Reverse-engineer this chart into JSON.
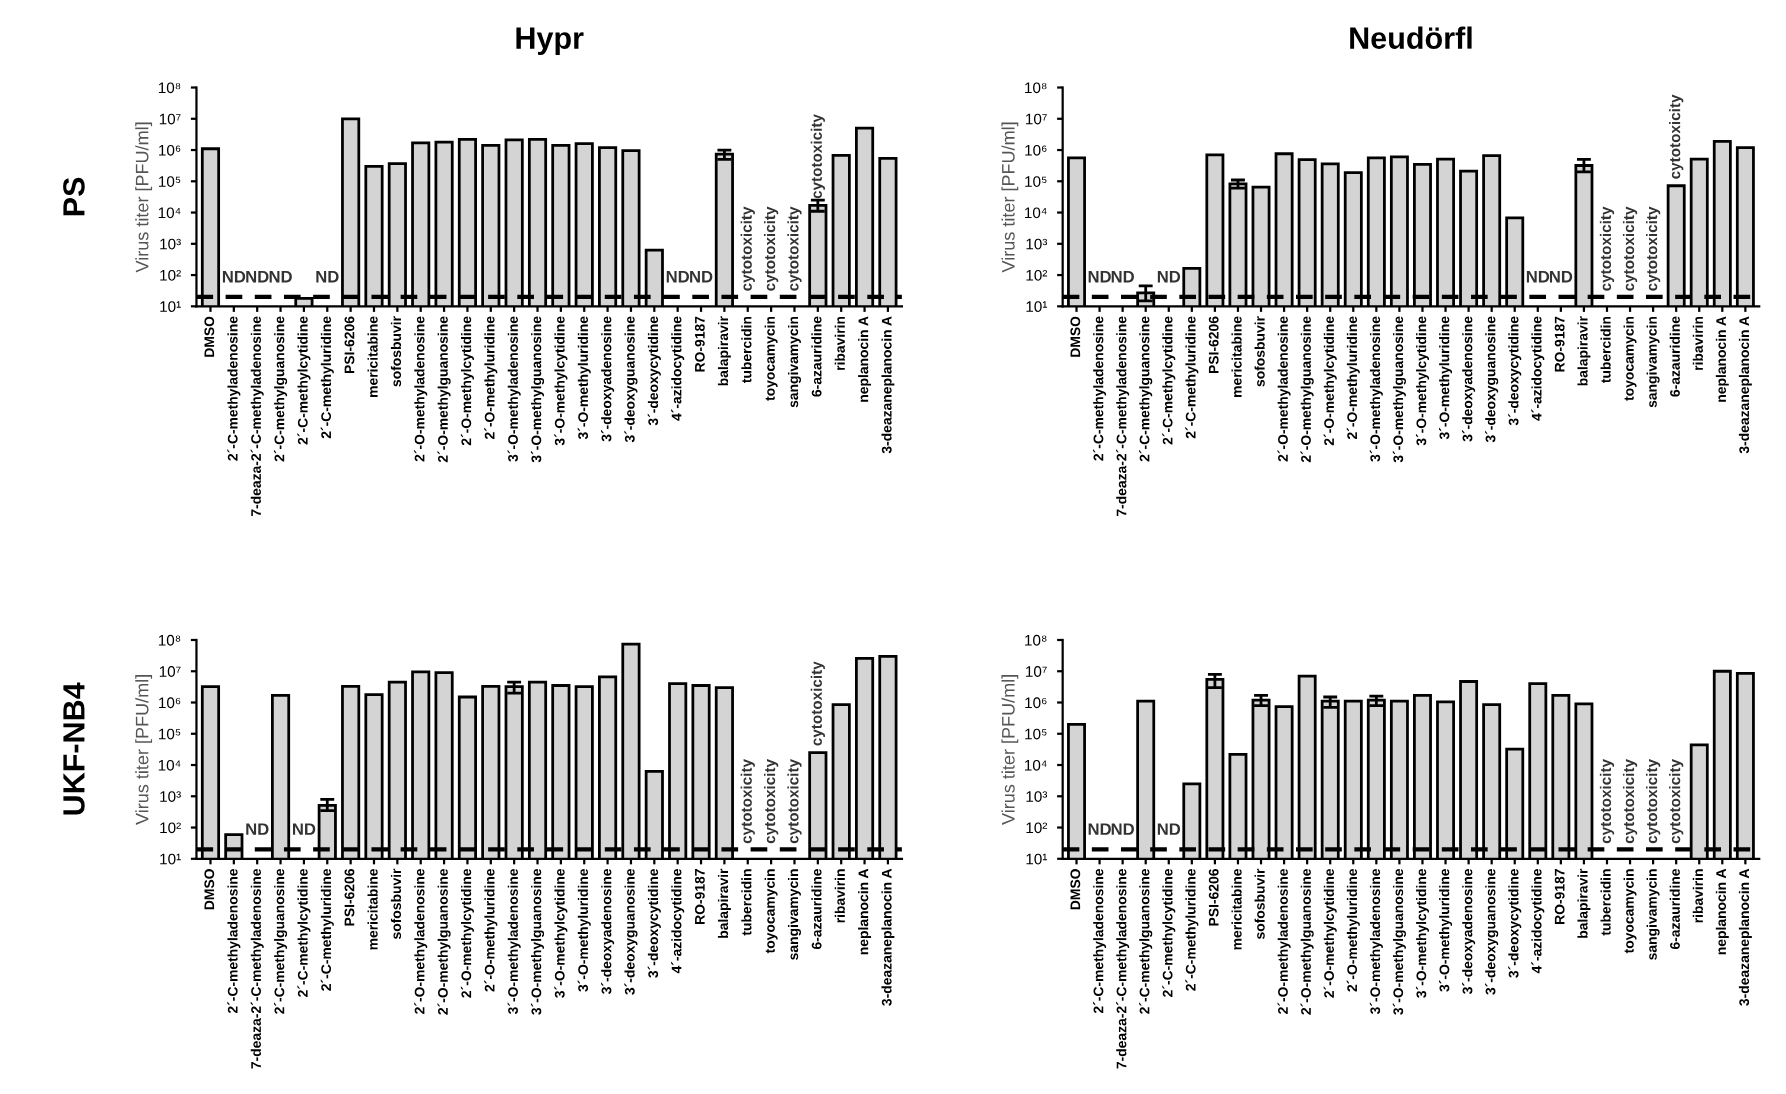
{
  "chart_data": [
    {
      "type": "bar",
      "title": "Hypr",
      "ylabel": "Virus titer [PFU/ml]",
      "color": "#d4d4d4",
      "log": true,
      "ylim": [
        10,
        100000000
      ],
      "yticks": [
        {
          "value": 10,
          "label": "10¹"
        },
        {
          "value": 100,
          "label": "10²"
        },
        {
          "value": 1000,
          "label": "10³"
        },
        {
          "value": 10000,
          "label": "10⁴"
        },
        {
          "value": 100000,
          "label": "10⁵"
        },
        {
          "value": 1000000,
          "label": "10⁶"
        },
        {
          "value": 10000000,
          "label": "10⁷"
        },
        {
          "value": 100000000,
          "label": "10⁸"
        }
      ],
      "categories": [
        "DMSO",
        "2´-C-methyladenosine",
        "7-deaza-2´-C-methyladenosine",
        "2´-C-methylguanosine",
        "2´-C-methylcytidine",
        "2´-C-methyluridine",
        "PSI-6206",
        "mericitabine",
        "sofosbuvir",
        "2´-O-methyladenosine",
        "2´-O-methylguanosine",
        "2´-O-methylcytidine",
        "2´-O-methyluridine",
        "3´-O-methyladenosine",
        "3´-O-methylguanosine",
        "3´-O-methylcytidine",
        "3´-O-methyluridine",
        "3´-deoxyadenosine",
        "3´-deoxyguanosine",
        "3´-deoxycytidine",
        "4´-azidocytidine",
        "RO-9187",
        "balapiravir",
        "tubercidin",
        "toyocamycin",
        "sangivamycin",
        "6-azauridine",
        "ribavirin",
        "neplanocin A",
        "3-deazaneplanocin A"
      ],
      "values": [
        1100000,
        null,
        null,
        null,
        18,
        null,
        10000000,
        300000,
        370000,
        1700000,
        1800000,
        2200000,
        1400000,
        2100000,
        2200000,
        1400000,
        1600000,
        1200000,
        950000,
        630,
        null,
        null,
        740000,
        null,
        null,
        null,
        17000,
        670000,
        5000000,
        540000
      ],
      "errors": [
        null,
        null,
        null,
        null,
        null,
        null,
        null,
        null,
        null,
        null,
        null,
        null,
        null,
        null,
        null,
        null,
        null,
        null,
        null,
        null,
        null,
        null,
        [
          500000,
          1000000
        ],
        null,
        null,
        null,
        [
          11000,
          25000
        ],
        null,
        null,
        null
      ],
      "ref_lines": [
        {
          "axis": "y",
          "value": 20,
          "color": "#000000",
          "line_style": "dashed"
        }
      ],
      "value_labels": [
        null,
        "ND",
        "ND",
        "ND",
        null,
        "ND",
        null,
        null,
        null,
        null,
        null,
        null,
        null,
        null,
        null,
        null,
        null,
        null,
        null,
        null,
        "ND",
        "ND",
        null,
        "cytotoxicity",
        "cytotoxicity",
        "cytotoxicity",
        "cytotoxicity",
        null,
        null,
        null
      ],
      "annotations": [
        "PS"
      ]
    },
    {
      "type": "bar",
      "title": "Neudörfl",
      "ylabel": "Virus titer [PFU/ml]",
      "color": "#d4d4d4",
      "log": true,
      "ylim": [
        10,
        100000000
      ],
      "yticks": [
        {
          "value": 10,
          "label": "10¹"
        },
        {
          "value": 100,
          "label": "10²"
        },
        {
          "value": 1000,
          "label": "10³"
        },
        {
          "value": 10000,
          "label": "10⁴"
        },
        {
          "value": 100000,
          "label": "10⁵"
        },
        {
          "value": 1000000,
          "label": "10⁶"
        },
        {
          "value": 10000000,
          "label": "10⁷"
        },
        {
          "value": 100000000,
          "label": "10⁸"
        }
      ],
      "categories": [
        "DMSO",
        "2´-C-methyladenosine",
        "7-deaza-2´-C-methyladenosine",
        "2´-C-methylguanosine",
        "2´-C-methylcytidine",
        "2´-C-methyluridine",
        "PSI-6206",
        "mericitabine",
        "sofosbuvir",
        "2´-O-methyladenosine",
        "2´-O-methylguanosine",
        "2´-O-methylcytidine",
        "2´-O-methyluridine",
        "3´-O-methyladenosine",
        "3´-O-methylguanosine",
        "3´-O-methylcytidine",
        "3´-O-methyluridine",
        "3´-deoxyadenosine",
        "3´-deoxyguanosine",
        "3´-deoxycytidine",
        "4´-azidocytidine",
        "RO-9187",
        "balapiravir",
        "tubercidin",
        "toyocamycin",
        "sangivamycin",
        "6-azauridine",
        "ribavirin",
        "neplanocin A",
        "3-deazaneplanocin A"
      ],
      "values": [
        560000,
        null,
        null,
        27,
        null,
        165,
        700000,
        83000,
        65000,
        760000,
        490000,
        360000,
        190000,
        560000,
        600000,
        350000,
        510000,
        210000,
        660000,
        6800,
        null,
        null,
        320000,
        null,
        null,
        null,
        72000,
        510000,
        1900000,
        1200000
      ],
      "errors": [
        null,
        null,
        null,
        [
          15,
          45
        ],
        null,
        null,
        null,
        [
          60000,
          110000
        ],
        null,
        null,
        null,
        null,
        null,
        null,
        null,
        null,
        null,
        null,
        null,
        null,
        null,
        null,
        [
          200000,
          500000
        ],
        null,
        null,
        null,
        null,
        null,
        null,
        null
      ],
      "ref_lines": [
        {
          "axis": "y",
          "value": 20,
          "color": "#000000",
          "line_style": "dashed"
        }
      ],
      "value_labels": [
        null,
        "ND",
        "ND",
        null,
        "ND",
        null,
        null,
        null,
        null,
        null,
        null,
        null,
        null,
        null,
        null,
        null,
        null,
        null,
        null,
        null,
        "ND",
        "ND",
        null,
        "cytotoxicity",
        "cytotoxicity",
        "cytotoxicity",
        "cytotoxicity",
        null,
        null,
        null
      ]
    },
    {
      "type": "bar",
      "ylabel": "Virus titer [PFU/ml]",
      "color": "#d4d4d4",
      "log": true,
      "ylim": [
        10,
        100000000
      ],
      "yticks": [
        {
          "value": 10,
          "label": "10¹"
        },
        {
          "value": 100,
          "label": "10²"
        },
        {
          "value": 1000,
          "label": "10³"
        },
        {
          "value": 10000,
          "label": "10⁴"
        },
        {
          "value": 100000,
          "label": "10⁵"
        },
        {
          "value": 1000000,
          "label": "10⁶"
        },
        {
          "value": 10000000,
          "label": "10⁷"
        },
        {
          "value": 100000000,
          "label": "10⁸"
        }
      ],
      "categories": [
        "DMSO",
        "2´-C-methyladenosine",
        "7-deaza-2´-C-methyladenosine",
        "2´-C-methylguanosine",
        "2´-C-methylcytidine",
        "2´-C-methyluridine",
        "PSI-6206",
        "mericitabine",
        "sofosbuvir",
        "2´-O-methyladenosine",
        "2´-O-methylguanosine",
        "2´-O-methylcytidine",
        "2´-O-methyluridine",
        "3´-O-methyladenosine",
        "3´-O-methylguanosine",
        "3´-O-methylcytidine",
        "3´-O-methyluridine",
        "3´-deoxyadenosine",
        "3´-deoxyguanosine",
        "3´-deoxycytidine",
        "4´-azidocytidine",
        "RO-9187",
        "balapiravir",
        "tubercidin",
        "toyocamycin",
        "sangivamycin",
        "6-azauridine",
        "ribavirin",
        "neplanocin A",
        "3-deazaneplanocin A"
      ],
      "values": [
        3200000,
        59,
        null,
        1700000,
        null,
        510,
        3300000,
        1800000,
        4500000,
        9500000,
        9000000,
        1500000,
        3300000,
        3200000,
        4500000,
        3500000,
        3200000,
        6600000,
        74000000,
        6300,
        4000000,
        3500000,
        3000000,
        null,
        null,
        null,
        25000,
        850000,
        26000000,
        30000000
      ],
      "errors": [
        null,
        null,
        null,
        null,
        null,
        [
          350,
          800
        ],
        null,
        null,
        null,
        null,
        null,
        null,
        null,
        [
          2000000,
          4500000
        ],
        null,
        null,
        null,
        null,
        null,
        null,
        null,
        null,
        null,
        null,
        null,
        null,
        null,
        null,
        null,
        null
      ],
      "ref_lines": [
        {
          "axis": "y",
          "value": 20,
          "color": "#000000",
          "line_style": "dashed"
        }
      ],
      "value_labels": [
        null,
        null,
        "ND",
        null,
        "ND",
        null,
        null,
        null,
        null,
        null,
        null,
        null,
        null,
        null,
        null,
        null,
        null,
        null,
        null,
        null,
        null,
        null,
        null,
        "cytotoxicity",
        "cytotoxicity",
        "cytotoxicity",
        "cytotoxicity",
        null,
        null,
        null
      ],
      "annotations": [
        "UKF-NB4"
      ]
    },
    {
      "type": "bar",
      "ylabel": "Virus titer [PFU/ml]",
      "color": "#d4d4d4",
      "log": true,
      "ylim": [
        10,
        100000000
      ],
      "yticks": [
        {
          "value": 10,
          "label": "10¹"
        },
        {
          "value": 100,
          "label": "10²"
        },
        {
          "value": 1000,
          "label": "10³"
        },
        {
          "value": 10000,
          "label": "10⁴"
        },
        {
          "value": 100000,
          "label": "10⁵"
        },
        {
          "value": 1000000,
          "label": "10⁶"
        },
        {
          "value": 10000000,
          "label": "10⁷"
        },
        {
          "value": 100000000,
          "label": "10⁸"
        }
      ],
      "categories": [
        "DMSO",
        "2´-C-methyladenosine",
        "7-deaza-2´-C-methyladenosine",
        "2´-C-methylguanosine",
        "2´-C-methylcytidine",
        "2´-C-methyluridine",
        "PSI-6206",
        "mericitabine",
        "sofosbuvir",
        "2´-O-methyladenosine",
        "2´-O-methylguanosine",
        "2´-O-methylcytidine",
        "2´-O-methyluridine",
        "3´-O-methyladenosine",
        "3´-O-methylguanosine",
        "3´-O-methylcytidine",
        "3´-O-methyluridine",
        "3´-deoxyadenosine",
        "3´-deoxyguanosine",
        "3´-deoxycytidine",
        "4´-azidocytidine",
        "RO-9187",
        "balapiravir",
        "tubercidin",
        "toyocamycin",
        "sangivamycin",
        "6-azauridine",
        "ribavirin",
        "neplanocin A",
        "3-deazaneplanocin A"
      ],
      "values": [
        200000,
        null,
        null,
        1100000,
        null,
        2500,
        5500000,
        22000,
        1200000,
        740000,
        7000000,
        1100000,
        1100000,
        1200000,
        1100000,
        1700000,
        1050000,
        4700000,
        850000,
        32000,
        4000000,
        1700000,
        900000,
        null,
        null,
        null,
        null,
        44000,
        10000000,
        8500000
      ],
      "errors": [
        null,
        null,
        null,
        null,
        null,
        null,
        [
          3000000,
          8000000
        ],
        null,
        [
          800000,
          1700000
        ],
        null,
        null,
        [
          700000,
          1500000
        ],
        null,
        [
          800000,
          1600000
        ],
        null,
        null,
        null,
        null,
        null,
        null,
        null,
        null,
        null,
        null,
        null,
        null,
        null,
        null,
        null,
        null
      ],
      "ref_lines": [
        {
          "axis": "y",
          "value": 20,
          "color": "#000000",
          "line_style": "dashed"
        }
      ],
      "value_labels": [
        null,
        "ND",
        "ND",
        null,
        "ND",
        null,
        null,
        null,
        null,
        null,
        null,
        null,
        null,
        null,
        null,
        null,
        null,
        null,
        null,
        null,
        null,
        null,
        null,
        "cytotoxicity",
        "cytotoxicity",
        "cytotoxicity",
        "cytotoxicity",
        null,
        null,
        null
      ]
    }
  ]
}
